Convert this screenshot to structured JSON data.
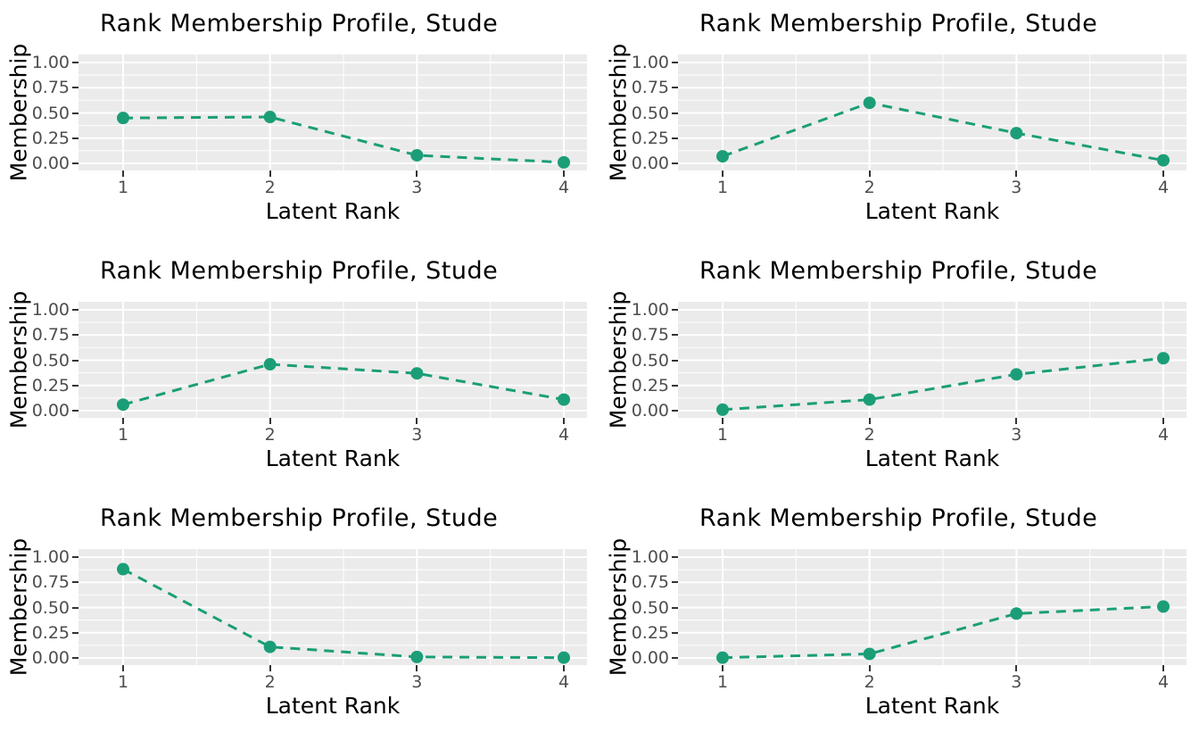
{
  "figure": {
    "description": "Grid of six latent rank membership profile line charts",
    "rows": 3,
    "cols": 2
  },
  "style": {
    "accent_color": "#1b9e77",
    "panel_bg": "#ebebeb",
    "grid_color": "#ffffff",
    "tick_mark_color": "#333333",
    "tick_label_color": "#4d4d4d",
    "text_color": "#000000",
    "page_bg": "#ffffff"
  },
  "axis": {
    "x_label": "Latent Rank",
    "y_label": "Membership",
    "x_tick_values": [
      1,
      2,
      3,
      4
    ],
    "x_tick_labels": [
      "1",
      "2",
      "3",
      "4"
    ],
    "y_tick_values": [
      0,
      0.25,
      0.5,
      0.75,
      1.0
    ],
    "y_tick_labels": [
      "0.00",
      "0.25",
      "0.50",
      "0.75",
      "1.00"
    ],
    "x_minor_values": [
      1.5,
      2.5,
      3.5
    ],
    "y_minor_values": [
      0.125,
      0.375,
      0.625,
      0.875
    ],
    "xlim": [
      1,
      4
    ],
    "ylim": [
      0,
      1
    ],
    "grid": "major-and-minor",
    "legend": "none"
  },
  "chart_data": [
    {
      "type": "line",
      "title": "Rank Membership Profile, Stude",
      "xlabel": "Latent Rank",
      "ylabel": "Membership",
      "x": [
        1,
        2,
        3,
        4
      ],
      "values": [
        0.45,
        0.46,
        0.08,
        0.01
      ],
      "ylim": [
        0,
        1
      ],
      "line_style": "dashed",
      "marker": "circle"
    },
    {
      "type": "line",
      "title": "Rank Membership Profile, Stude",
      "xlabel": "Latent Rank",
      "ylabel": "Membership",
      "x": [
        1,
        2,
        3,
        4
      ],
      "values": [
        0.07,
        0.6,
        0.3,
        0.03
      ],
      "ylim": [
        0,
        1
      ],
      "line_style": "dashed",
      "marker": "circle"
    },
    {
      "type": "line",
      "title": "Rank Membership Profile, Stude",
      "xlabel": "Latent Rank",
      "ylabel": "Membership",
      "x": [
        1,
        2,
        3,
        4
      ],
      "values": [
        0.06,
        0.46,
        0.37,
        0.11
      ],
      "ylim": [
        0,
        1
      ],
      "line_style": "dashed",
      "marker": "circle"
    },
    {
      "type": "line",
      "title": "Rank Membership Profile, Stude",
      "xlabel": "Latent Rank",
      "ylabel": "Membership",
      "x": [
        1,
        2,
        3,
        4
      ],
      "values": [
        0.01,
        0.11,
        0.36,
        0.52
      ],
      "ylim": [
        0,
        1
      ],
      "line_style": "dashed",
      "marker": "circle"
    },
    {
      "type": "line",
      "title": "Rank Membership Profile, Stude",
      "xlabel": "Latent Rank",
      "ylabel": "Membership",
      "x": [
        1,
        2,
        3,
        4
      ],
      "values": [
        0.88,
        0.11,
        0.01,
        0.003
      ],
      "ylim": [
        0,
        1
      ],
      "line_style": "dashed",
      "marker": "circle"
    },
    {
      "type": "line",
      "title": "Rank Membership Profile, Stude",
      "xlabel": "Latent Rank",
      "ylabel": "Membership",
      "x": [
        1,
        2,
        3,
        4
      ],
      "values": [
        0.003,
        0.04,
        0.44,
        0.51
      ],
      "ylim": [
        0,
        1
      ],
      "line_style": "dashed",
      "marker": "circle"
    }
  ]
}
